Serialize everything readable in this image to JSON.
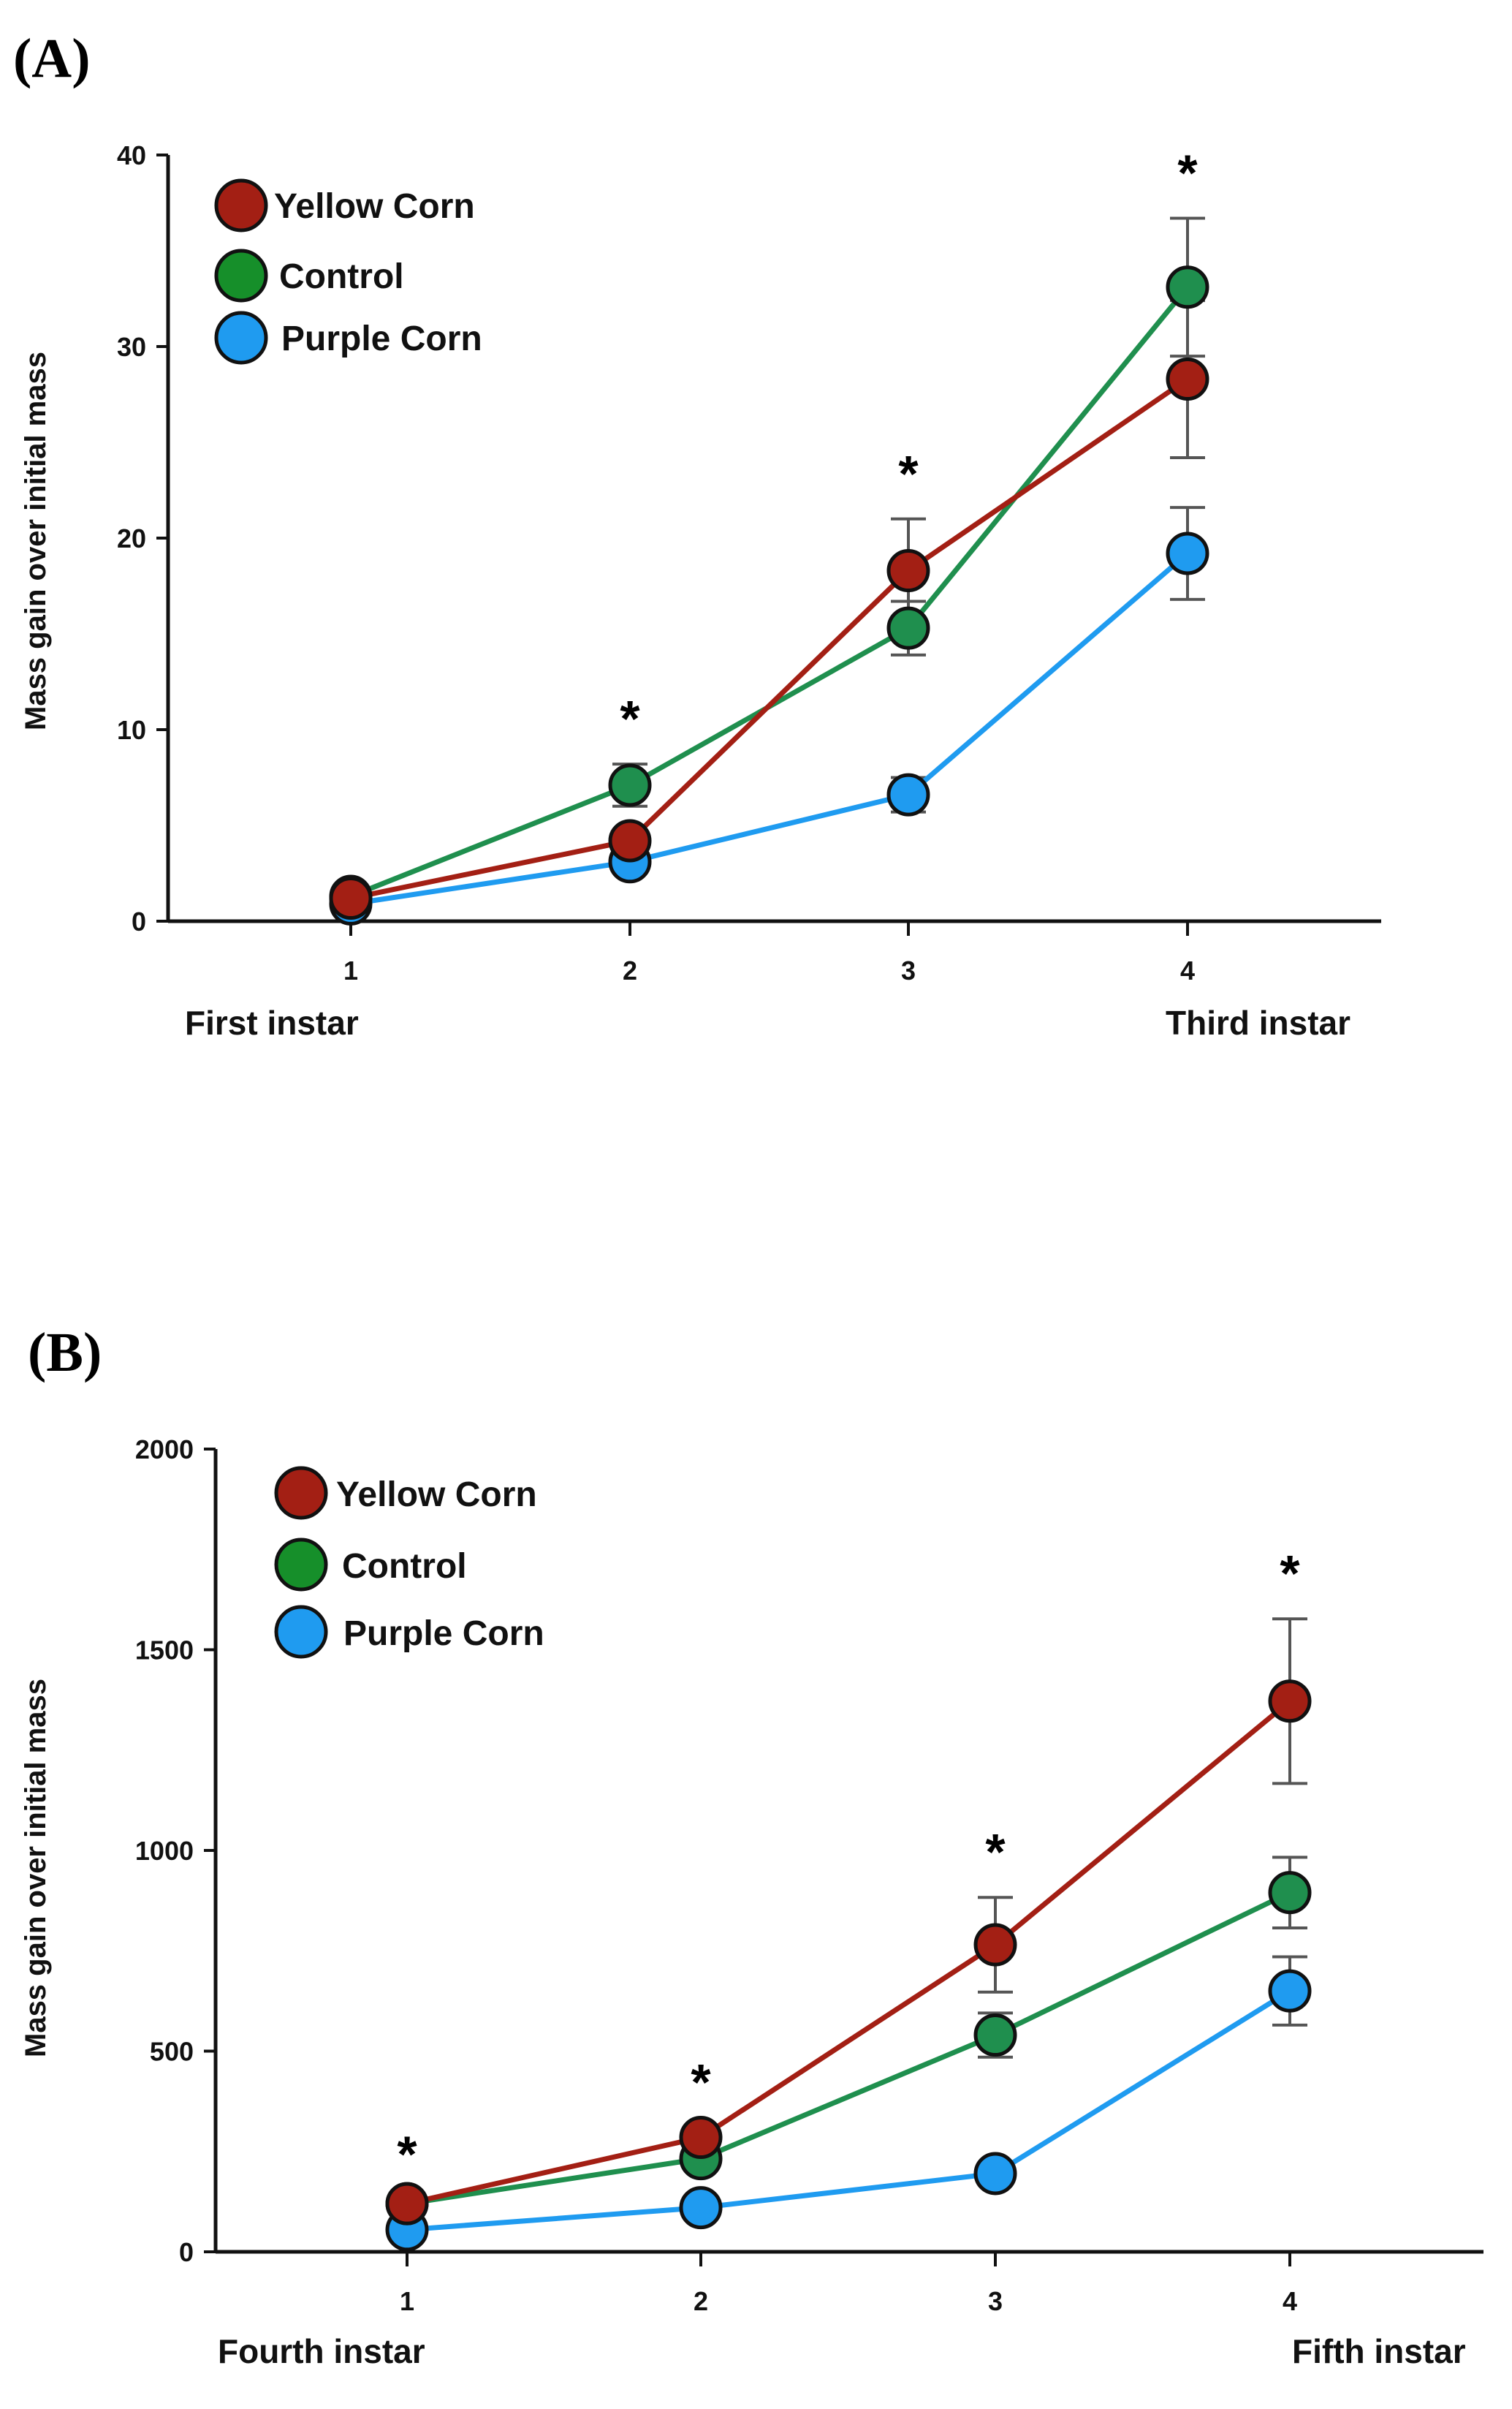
{
  "colors": {
    "yellow_corn": "#a31f14",
    "control": "#1f8f4e",
    "purple_corn": "#1f9bf0",
    "legend_control": "#168f2a"
  },
  "chart_data": [
    {
      "type": "line",
      "panel": "(A)",
      "ylabel": "Mass gain over initial mass",
      "ylim": [
        0,
        40
      ],
      "yticks": [
        "0",
        "10",
        "20",
        "30",
        "40"
      ],
      "categories": [
        "1",
        "2",
        "3",
        "4"
      ],
      "stage_start": "First instar",
      "stage_end": "Third instar",
      "legend": [
        "Yellow Corn",
        "Control",
        "Purple Corn"
      ],
      "legend_position": "top-left",
      "significance": [
        "",
        "*",
        "*",
        "*"
      ],
      "series": [
        {
          "name": "Yellow Corn",
          "values": [
            1.2,
            4.2,
            18.3,
            28.3
          ],
          "err": [
            0.3,
            0.5,
            2.7,
            4.1
          ]
        },
        {
          "name": "Control",
          "values": [
            1.3,
            7.1,
            15.3,
            33.1
          ],
          "err": [
            0.3,
            1.1,
            1.4,
            3.6
          ]
        },
        {
          "name": "Purple Corn",
          "values": [
            0.9,
            3.1,
            6.6,
            19.2
          ],
          "err": [
            0.2,
            0.4,
            0.9,
            2.4
          ]
        }
      ]
    },
    {
      "type": "line",
      "panel": "(B)",
      "ylabel": "Mass gain over initial mass",
      "ylim": [
        0,
        2000
      ],
      "yticks": [
        "0",
        "500",
        "1000",
        "1500",
        "2000"
      ],
      "categories": [
        "1",
        "2",
        "3",
        "4"
      ],
      "stage_start": "Fourth instar",
      "stage_end": "Fifth instar",
      "legend": [
        "Yellow Corn",
        "Control",
        "Purple Corn"
      ],
      "legend_position": "top-left",
      "significance": [
        "*",
        "*",
        "*",
        "*"
      ],
      "series": [
        {
          "name": "Yellow Corn",
          "values": [
            120,
            285,
            765,
            1372
          ],
          "err": [
            10,
            25,
            118,
            205
          ]
        },
        {
          "name": "Control",
          "values": [
            120,
            232,
            540,
            895
          ],
          "err": [
            10,
            18,
            55,
            88
          ]
        },
        {
          "name": "Purple Corn",
          "values": [
            55,
            110,
            195,
            650
          ],
          "err": [
            8,
            10,
            15,
            85
          ]
        }
      ]
    }
  ]
}
